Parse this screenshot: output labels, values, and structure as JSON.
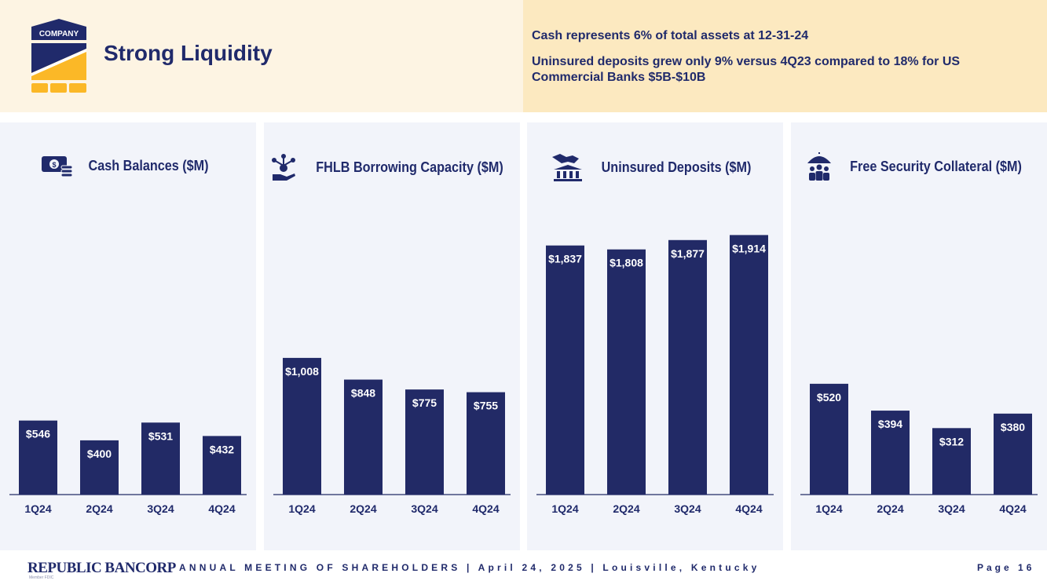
{
  "header": {
    "logo_text": "COMPANY",
    "title": "Strong Liquidity",
    "bullets": [
      "Cash represents 6% of total assets at 12-31-24",
      "Uninsured deposits grew only 9% versus 4Q23 compared to 18% for US Commercial Banks $5B-$10B"
    ]
  },
  "colors": {
    "bar": "#222a66",
    "title": "#202a6b",
    "panel_bg": "#f2f4fa",
    "header_left_bg": "#fdf4e3",
    "header_right_bg": "#fce9c0",
    "logo_gold": "#fbb827"
  },
  "panels": [
    {
      "title": "Cash Balances ($M)",
      "icon": "cash-icon"
    },
    {
      "title": "FHLB Borrowing Capacity ($M)",
      "icon": "hand-network-icon"
    },
    {
      "title": "Uninsured Deposits ($M)",
      "icon": "bank-handshake-icon"
    },
    {
      "title": "Free Security Collateral ($M)",
      "icon": "umbrella-people-icon"
    }
  ],
  "chart_data": [
    {
      "type": "bar",
      "title": "Cash Balances ($M)",
      "categories": [
        "1Q24",
        "2Q24",
        "3Q24",
        "4Q24"
      ],
      "values": [
        546,
        400,
        531,
        432
      ],
      "labels": [
        "$546",
        "$400",
        "$531",
        "$432"
      ],
      "ylim": [
        0,
        2200
      ]
    },
    {
      "type": "bar",
      "title": "FHLB Borrowing Capacity ($M)",
      "categories": [
        "1Q24",
        "2Q24",
        "3Q24",
        "4Q24"
      ],
      "values": [
        1008,
        848,
        775,
        755
      ],
      "labels": [
        "$1,008",
        "$848",
        "$775",
        "$755"
      ],
      "ylim": [
        0,
        2200
      ]
    },
    {
      "type": "bar",
      "title": "Uninsured Deposits ($M)",
      "categories": [
        "1Q24",
        "2Q24",
        "3Q24",
        "4Q24"
      ],
      "values": [
        1837,
        1808,
        1877,
        1914
      ],
      "labels": [
        "$1,837",
        "$1,808",
        "$1,877",
        "$1,914"
      ],
      "ylim": [
        0,
        2200
      ]
    },
    {
      "type": "bar",
      "title": "Free Security Collateral ($M)",
      "categories": [
        "1Q24",
        "2Q24",
        "3Q24",
        "4Q24"
      ],
      "values": [
        520,
        394,
        312,
        380
      ],
      "labels": [
        "$520",
        "$394",
        "$312",
        "$380"
      ],
      "ylim": [
        0,
        1400
      ]
    }
  ],
  "footer": {
    "brand": "REPUBLIC BANCORP",
    "brand_sub": "Member FDIC",
    "meeting": "ANNUAL MEETING OF SHAREHOLDERS  |  April 24, 2025  |  Louisville, Kentucky",
    "page": "Page 16"
  }
}
